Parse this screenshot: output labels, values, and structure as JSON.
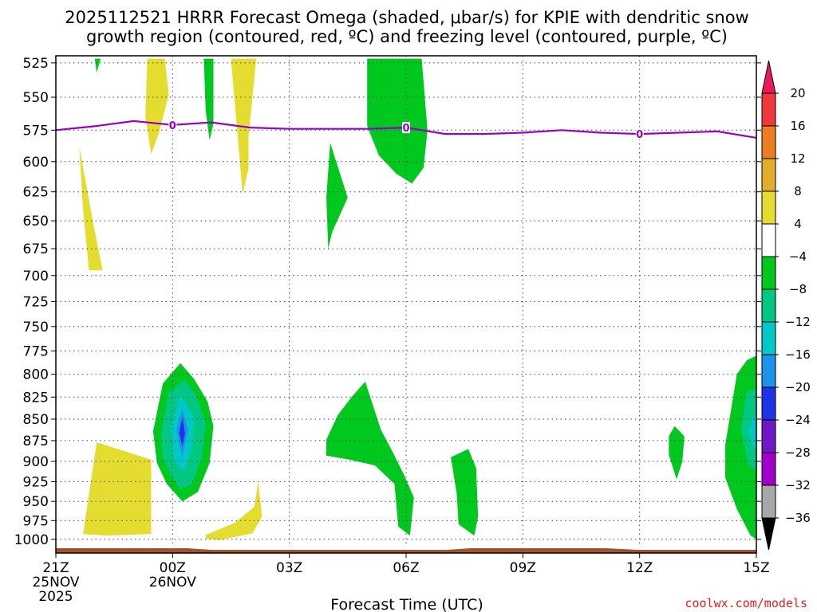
{
  "chart_data": {
    "type": "heatmap",
    "title_line1": "2025112521 HRRR Forecast Omega (shaded, μbar/s) for KPIE with dendritic snow",
    "title_line2": "growth region (contoured, red, ºC) and freezing level (contoured, purple, ºC)",
    "xlabel": "Forecast Time (UTC)",
    "credit": "coolwx.com/models",
    "x_range_hours": [
      0,
      18
    ],
    "x_ticks": [
      {
        "hour": 0,
        "label": "21Z",
        "sub1": "25NOV",
        "sub2": "2025"
      },
      {
        "hour": 3,
        "label": "00Z",
        "sub1": "26NOV",
        "sub2": ""
      },
      {
        "hour": 6,
        "label": "03Z",
        "sub1": "",
        "sub2": ""
      },
      {
        "hour": 9,
        "label": "06Z",
        "sub1": "",
        "sub2": ""
      },
      {
        "hour": 12,
        "label": "09Z",
        "sub1": "",
        "sub2": ""
      },
      {
        "hour": 15,
        "label": "12Z",
        "sub1": "",
        "sub2": ""
      },
      {
        "hour": 18,
        "label": "15Z",
        "sub1": "",
        "sub2": ""
      }
    ],
    "y_range_hpa": [
      1010,
      520
    ],
    "y_ticks": [
      525,
      550,
      575,
      600,
      625,
      650,
      675,
      700,
      725,
      750,
      775,
      800,
      825,
      850,
      875,
      900,
      925,
      950,
      975,
      1000
    ],
    "colorbar": {
      "levels": [
        20,
        16,
        12,
        8,
        4,
        -4,
        -8,
        -12,
        -16,
        -20,
        -24,
        -28,
        -32,
        -36
      ],
      "colors": [
        "#e81a5a",
        "#f0383c",
        "#ec7d22",
        "#e2ad2c",
        "#e4dc2f",
        "#ffffff",
        "#00c81e",
        "#00c882",
        "#00c8c8",
        "#1e91ea",
        "#1e32e6",
        "#7018c6",
        "#a000c8",
        "#a8a8a8",
        "#000000"
      ]
    },
    "freezing_level": {
      "color": "#9600c8",
      "label": "0",
      "label_hours": [
        3,
        9,
        15
      ],
      "points": [
        [
          0,
          575
        ],
        [
          1,
          572
        ],
        [
          2,
          568
        ],
        [
          3,
          571
        ],
        [
          4,
          569
        ],
        [
          5,
          573
        ],
        [
          6,
          574
        ],
        [
          7,
          574
        ],
        [
          8,
          574
        ],
        [
          9,
          573
        ],
        [
          10,
          578
        ],
        [
          11,
          578
        ],
        [
          12,
          577
        ],
        [
          13,
          575
        ],
        [
          14,
          577
        ],
        [
          15,
          578
        ],
        [
          16,
          577
        ],
        [
          17,
          576
        ],
        [
          18,
          581
        ]
      ]
    },
    "ground_color": "#a0522d",
    "omega_regions": [
      {
        "name": "omega-region-dn1",
        "value": 5,
        "pts": [
          [
            0.6,
            588
          ],
          [
            0.95,
            650
          ],
          [
            1.2,
            695
          ],
          [
            0.85,
            695
          ],
          [
            0.7,
            640
          ]
        ]
      },
      {
        "name": "omega-region-dn2",
        "value": 5,
        "pts": [
          [
            0.7,
            993
          ],
          [
            1.05,
            877
          ],
          [
            2.45,
            898
          ],
          [
            2.45,
            993
          ],
          [
            1.3,
            995
          ]
        ]
      },
      {
        "name": "omega-region-dn3",
        "value": 5,
        "pts": [
          [
            2.35,
            522
          ],
          [
            2.8,
            522
          ],
          [
            2.9,
            548
          ],
          [
            2.65,
            577
          ],
          [
            2.45,
            594
          ],
          [
            2.3,
            565
          ]
        ]
      },
      {
        "name": "omega-region-dn4",
        "value": 5,
        "pts": [
          [
            4.5,
            522
          ],
          [
            5.15,
            522
          ],
          [
            4.95,
            580
          ],
          [
            4.95,
            606
          ],
          [
            4.8,
            627
          ],
          [
            4.7,
            590
          ]
        ]
      },
      {
        "name": "omega-region-dn5",
        "value": 5,
        "pts": [
          [
            3.85,
            994
          ],
          [
            4.6,
            978
          ],
          [
            5.1,
            957
          ],
          [
            5.2,
            925
          ],
          [
            5.3,
            970
          ],
          [
            5.05,
            992
          ],
          [
            4.2,
            1001
          ],
          [
            3.85,
            999
          ]
        ]
      },
      {
        "name": "omega-region-up1",
        "value": -6,
        "pts": [
          [
            1.0,
            522
          ],
          [
            1.15,
            522
          ],
          [
            1.05,
            532
          ]
        ]
      },
      {
        "name": "omega-region-up2",
        "value": -6,
        "pts": [
          [
            3.8,
            522
          ],
          [
            4.05,
            522
          ],
          [
            4.05,
            570
          ],
          [
            3.95,
            583
          ],
          [
            3.85,
            560
          ]
        ]
      },
      {
        "name": "omega-region-up3",
        "value": -6,
        "pts": [
          [
            8.0,
            522
          ],
          [
            9.4,
            522
          ],
          [
            9.55,
            575
          ],
          [
            9.45,
            605
          ],
          [
            9.15,
            618
          ],
          [
            8.75,
            610
          ],
          [
            8.3,
            595
          ],
          [
            8.0,
            572
          ]
        ]
      },
      {
        "name": "omega-region-up4",
        "value": -6,
        "pts": [
          [
            7.05,
            585
          ],
          [
            7.5,
            630
          ],
          [
            7.1,
            660
          ],
          [
            7.0,
            675
          ],
          [
            6.95,
            630
          ]
        ]
      },
      {
        "name": "omega-region-up5",
        "value": -6,
        "pts": [
          [
            6.95,
            874
          ],
          [
            7.25,
            845
          ],
          [
            7.6,
            825
          ],
          [
            7.95,
            808
          ],
          [
            8.35,
            862
          ],
          [
            8.65,
            888
          ],
          [
            8.95,
            917
          ],
          [
            9.2,
            945
          ],
          [
            9.1,
            995
          ],
          [
            8.8,
            983
          ],
          [
            8.7,
            928
          ],
          [
            8.2,
            905
          ],
          [
            7.55,
            898
          ],
          [
            6.95,
            893
          ]
        ]
      },
      {
        "name": "omega-region-up6",
        "value": -6,
        "pts": [
          [
            10.15,
            895
          ],
          [
            10.6,
            885
          ],
          [
            10.8,
            908
          ],
          [
            10.85,
            970
          ],
          [
            10.75,
            995
          ],
          [
            10.35,
            980
          ],
          [
            10.3,
            940
          ]
        ]
      },
      {
        "name": "omega-region-up7",
        "value": -6,
        "pts": [
          [
            15.75,
            870
          ],
          [
            15.9,
            858
          ],
          [
            16.15,
            870
          ],
          [
            16.1,
            900
          ],
          [
            15.95,
            922
          ],
          [
            15.75,
            892
          ]
        ]
      },
      {
        "name": "omega-region-up8",
        "value": -6,
        "pts": [
          [
            17.2,
            880
          ],
          [
            17.5,
            800
          ],
          [
            17.75,
            785
          ],
          [
            18,
            780
          ],
          [
            18,
            1000
          ],
          [
            17.85,
            995
          ],
          [
            17.5,
            960
          ],
          [
            17.2,
            920
          ]
        ]
      },
      {
        "name": "omega-region-up9",
        "value": -6,
        "pts": [
          [
            2.5,
            864
          ],
          [
            2.75,
            810
          ],
          [
            3.2,
            788
          ],
          [
            3.55,
            805
          ],
          [
            3.9,
            830
          ],
          [
            4.05,
            858
          ],
          [
            3.95,
            902
          ],
          [
            3.65,
            938
          ],
          [
            3.25,
            950
          ],
          [
            2.85,
            928
          ],
          [
            2.6,
            902
          ]
        ]
      },
      {
        "name": "omega-region-up10",
        "value": -10,
        "pts": [
          [
            2.7,
            868
          ],
          [
            2.9,
            820
          ],
          [
            3.3,
            806
          ],
          [
            3.6,
            822
          ],
          [
            3.85,
            855
          ],
          [
            3.75,
            895
          ],
          [
            3.5,
            928
          ],
          [
            3.2,
            935
          ],
          [
            2.95,
            916
          ],
          [
            2.75,
            895
          ]
        ]
      },
      {
        "name": "omega-region-up11",
        "value": -10,
        "pts": [
          [
            17.6,
            862
          ],
          [
            17.75,
            820
          ],
          [
            18,
            815
          ],
          [
            18,
            910
          ],
          [
            17.8,
            905
          ]
        ]
      },
      {
        "name": "omega-region-up12",
        "value": -14,
        "pts": [
          [
            2.95,
            860
          ],
          [
            3.2,
            822
          ],
          [
            3.55,
            848
          ],
          [
            3.5,
            882
          ],
          [
            3.3,
            912
          ],
          [
            3.05,
            900
          ]
        ]
      },
      {
        "name": "omega-region-up13",
        "value": -14,
        "pts": [
          [
            17.8,
            862
          ],
          [
            18,
            840
          ],
          [
            18,
            885
          ],
          [
            17.9,
            880
          ]
        ]
      },
      {
        "name": "omega-region-up14",
        "value": -18,
        "pts": [
          [
            3.1,
            862
          ],
          [
            3.25,
            838
          ],
          [
            3.4,
            862
          ],
          [
            3.25,
            895
          ]
        ]
      },
      {
        "name": "omega-region-up15",
        "value": -22,
        "pts": [
          [
            3.17,
            866
          ],
          [
            3.25,
            848
          ],
          [
            3.32,
            866
          ],
          [
            3.25,
            882
          ]
        ]
      }
    ]
  }
}
